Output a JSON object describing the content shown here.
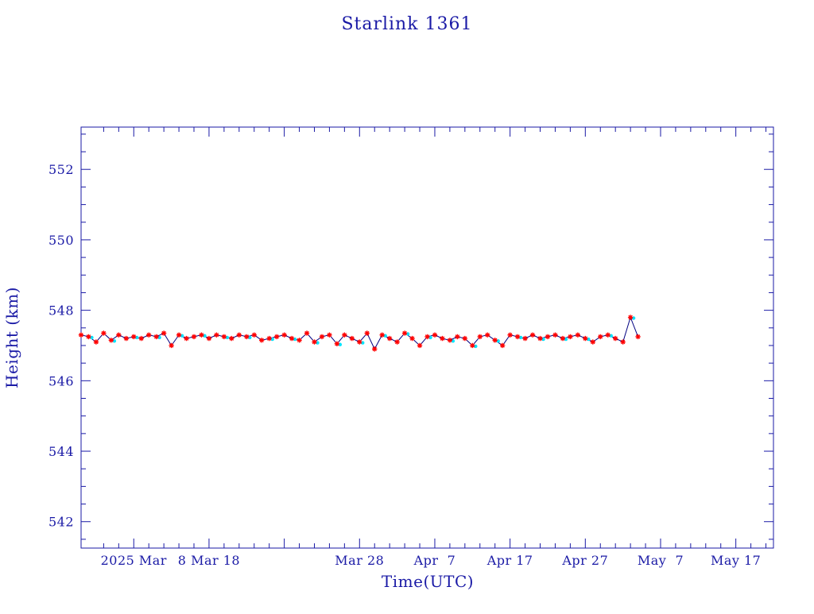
{
  "chart_data": {
    "type": "line",
    "title": "Starlink 1361",
    "xlabel": "Time(UTC)",
    "ylabel": "Height (km)",
    "x_unit": "date",
    "xlim": [
      "2025-02-19",
      "2025-05-22"
    ],
    "ylim": [
      541.25,
      553.2
    ],
    "yticks": [
      542,
      544,
      546,
      548,
      550,
      552
    ],
    "ytick_labels": [
      "542",
      "544",
      "546",
      "548",
      "550",
      "552"
    ],
    "xticks": [
      "2025-02-26",
      "2025-03-08",
      "2025-03-18",
      "2025-03-28",
      "2025-04-07",
      "2025-04-17",
      "2025-04-27",
      "2025-05-07",
      "2025-05-17"
    ],
    "xtick_labels": [
      "2025 Mar",
      "8 Mar 18",
      "",
      "Mar 28",
      "Apr  7",
      "Apr 17",
      "Apr 27",
      "May  7",
      "May 17"
    ],
    "grid": false,
    "colors": {
      "axis": "#1a1aa6",
      "line": "#000080",
      "marker": "#ff0000",
      "highlight": "#00e5ff"
    },
    "series": [
      {
        "marker": "asterisk",
        "x": [
          "2025-02-19",
          "2025-02-20",
          "2025-02-21",
          "2025-02-22",
          "2025-02-23",
          "2025-02-24",
          "2025-02-25",
          "2025-02-26",
          "2025-02-27",
          "2025-02-28",
          "2025-03-01",
          "2025-03-02",
          "2025-03-03",
          "2025-03-04",
          "2025-03-05",
          "2025-03-06",
          "2025-03-07",
          "2025-03-08",
          "2025-03-09",
          "2025-03-10",
          "2025-03-11",
          "2025-03-12",
          "2025-03-13",
          "2025-03-14",
          "2025-03-15",
          "2025-03-16",
          "2025-03-17",
          "2025-03-18",
          "2025-03-19",
          "2025-03-20",
          "2025-03-21",
          "2025-03-22",
          "2025-03-23",
          "2025-03-24",
          "2025-03-25",
          "2025-03-26",
          "2025-03-27",
          "2025-03-28",
          "2025-03-29",
          "2025-03-30",
          "2025-03-31",
          "2025-04-01",
          "2025-04-02",
          "2025-04-03",
          "2025-04-04",
          "2025-04-05",
          "2025-04-06",
          "2025-04-07",
          "2025-04-08",
          "2025-04-09",
          "2025-04-10",
          "2025-04-11",
          "2025-04-12",
          "2025-04-13",
          "2025-04-14",
          "2025-04-15",
          "2025-04-16",
          "2025-04-17",
          "2025-04-18",
          "2025-04-19",
          "2025-04-20",
          "2025-04-21",
          "2025-04-22",
          "2025-04-23",
          "2025-04-24",
          "2025-04-25",
          "2025-04-26",
          "2025-04-27",
          "2025-04-28",
          "2025-04-29",
          "2025-04-30",
          "2025-05-01",
          "2025-05-02",
          "2025-05-03",
          "2025-05-04"
        ],
        "y": [
          547.3,
          547.25,
          547.1,
          547.35,
          547.15,
          547.3,
          547.2,
          547.25,
          547.2,
          547.3,
          547.25,
          547.35,
          547.0,
          547.3,
          547.2,
          547.25,
          547.3,
          547.2,
          547.3,
          547.25,
          547.2,
          547.3,
          547.25,
          547.3,
          547.15,
          547.2,
          547.25,
          547.3,
          547.2,
          547.15,
          547.35,
          547.1,
          547.25,
          547.3,
          547.05,
          547.3,
          547.2,
          547.1,
          547.35,
          546.9,
          547.3,
          547.2,
          547.1,
          547.35,
          547.2,
          547.0,
          547.25,
          547.3,
          547.2,
          547.15,
          547.25,
          547.2,
          547.0,
          547.25,
          547.3,
          547.15,
          547.0,
          547.3,
          547.25,
          547.2,
          547.3,
          547.2,
          547.25,
          547.3,
          547.2,
          547.25,
          547.3,
          547.2,
          547.1,
          547.25,
          547.3,
          547.2,
          547.1,
          547.8,
          547.25
        ]
      }
    ]
  }
}
